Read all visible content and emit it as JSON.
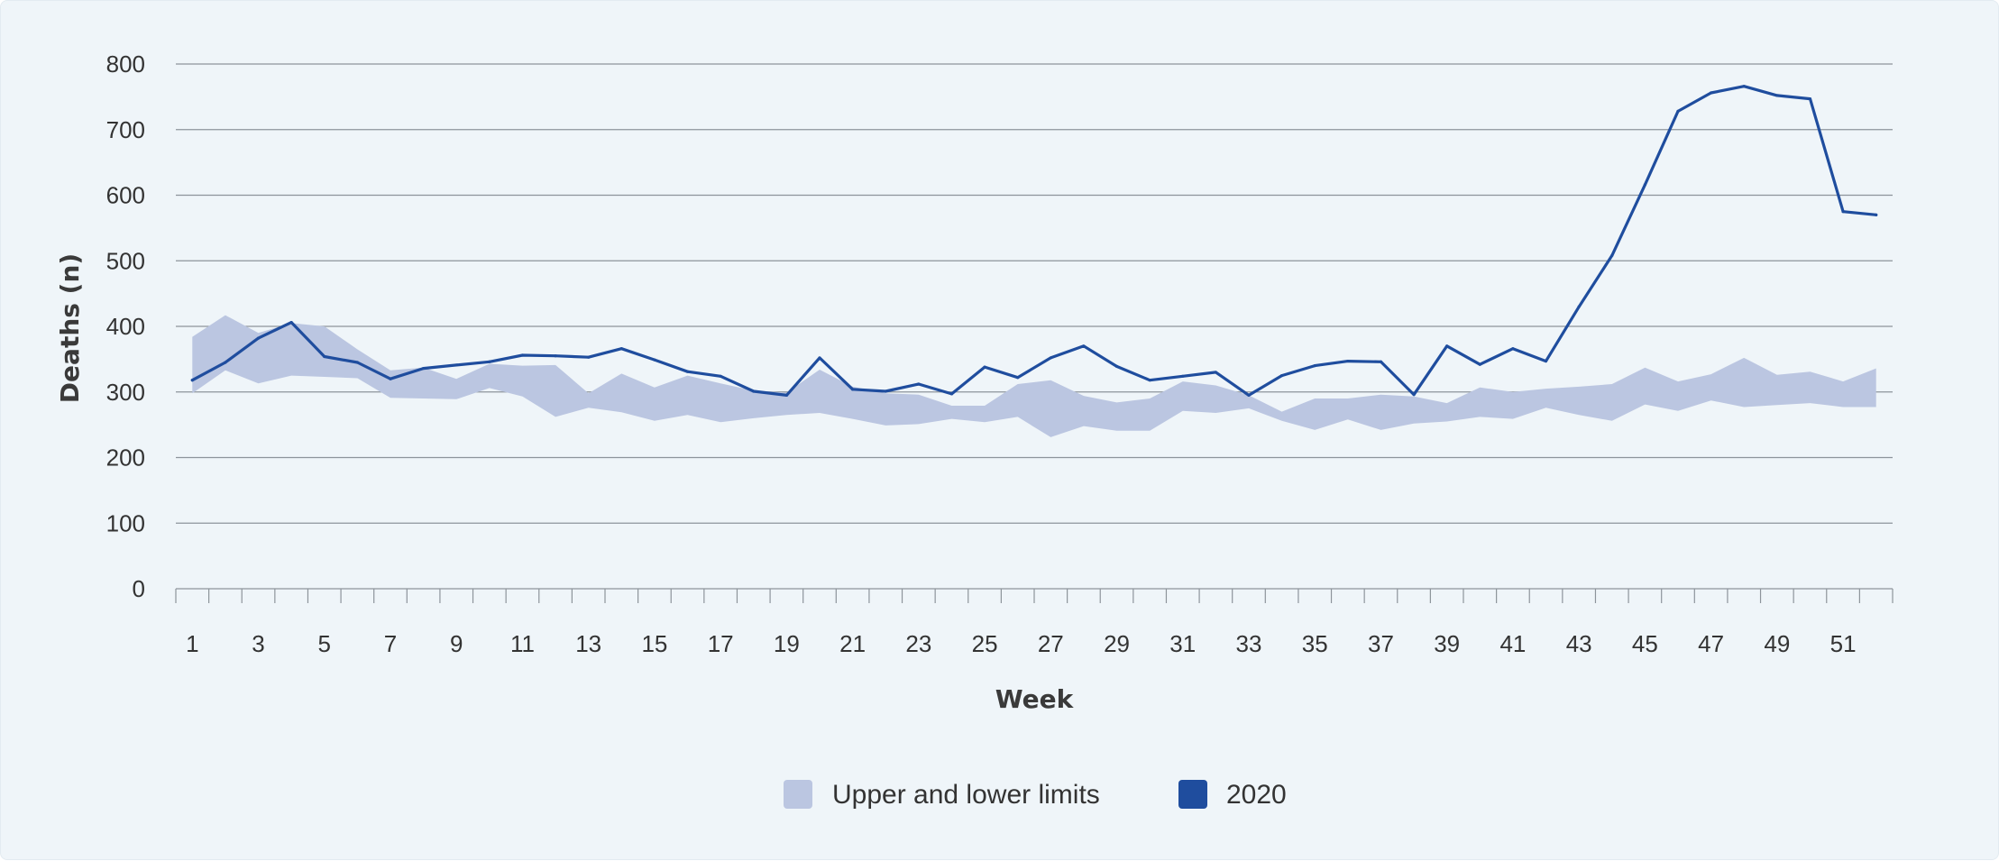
{
  "chart_data": {
    "type": "line",
    "xlabel": "Week",
    "ylabel": "Deaths (n)",
    "xlim": [
      1,
      52
    ],
    "ylim": [
      0,
      800
    ],
    "y_ticks": [
      0,
      100,
      200,
      300,
      400,
      500,
      600,
      700,
      800
    ],
    "x_tick_labels": [
      1,
      3,
      5,
      7,
      9,
      11,
      13,
      15,
      17,
      19,
      21,
      23,
      25,
      27,
      29,
      31,
      33,
      35,
      37,
      39,
      41,
      43,
      45,
      47,
      49,
      51
    ],
    "grid": "horizontal",
    "legend_position": "bottom",
    "weeks": [
      1,
      2,
      3,
      4,
      5,
      6,
      7,
      8,
      9,
      10,
      11,
      12,
      13,
      14,
      15,
      16,
      17,
      18,
      19,
      20,
      21,
      22,
      23,
      24,
      25,
      26,
      27,
      28,
      29,
      30,
      31,
      32,
      33,
      34,
      35,
      36,
      37,
      38,
      39,
      40,
      41,
      42,
      43,
      44,
      45,
      46,
      47,
      48,
      49,
      50,
      51,
      52
    ],
    "series": [
      {
        "name": "Upper and lower limits",
        "kind": "band",
        "color": "#bbc6e1",
        "upper": [
          384,
          417,
          390,
          405,
          400,
          365,
          333,
          337,
          320,
          343,
          340,
          341,
          298,
          328,
          307,
          325,
          313,
          302,
          299,
          334,
          308,
          298,
          296,
          279,
          279,
          312,
          318,
          294,
          284,
          290,
          316,
          310,
          295,
          270,
          290,
          290,
          296,
          293,
          283,
          307,
          300,
          305,
          308,
          312,
          337,
          316,
          327,
          352,
          326,
          331,
          316,
          336
        ],
        "lower": [
          298,
          333,
          313,
          325,
          323,
          321,
          291,
          290,
          289,
          306,
          293,
          262,
          276,
          269,
          256,
          265,
          254,
          260,
          265,
          268,
          259,
          249,
          251,
          259,
          254,
          262,
          231,
          248,
          241,
          241,
          271,
          268,
          275,
          256,
          242,
          258,
          242,
          252,
          255,
          262,
          259,
          276,
          265,
          256,
          281,
          271,
          287,
          277,
          280,
          283,
          277,
          277
        ]
      },
      {
        "name": "2020",
        "kind": "line",
        "color": "#1f4d9e",
        "values": [
          318,
          345,
          382,
          406,
          354,
          345,
          320,
          336,
          341,
          346,
          356,
          355,
          353,
          366,
          349,
          331,
          324,
          301,
          295,
          352,
          304,
          301,
          312,
          297,
          338,
          322,
          352,
          370,
          339,
          318,
          324,
          330,
          295,
          325,
          340,
          347,
          346,
          296,
          370,
          342,
          366,
          347,
          430,
          508,
          616,
          728,
          756,
          766,
          752,
          747,
          575,
          570
        ]
      }
    ]
  }
}
